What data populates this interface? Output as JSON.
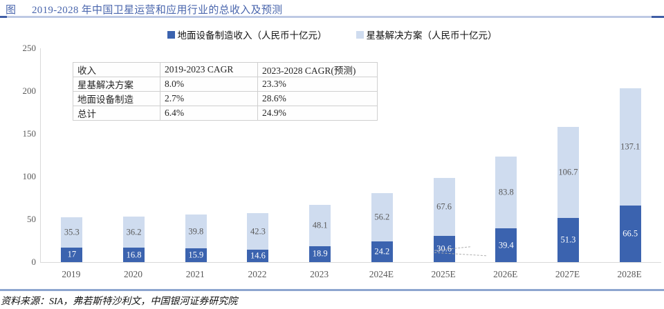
{
  "figure": {
    "tag": "图",
    "title": "2019-2028 年中国卫星运营和应用行业的总收入及预测",
    "source": "资料来源：SIA，弗若斯特沙利文，中国银河证券研究院"
  },
  "colors": {
    "accent_blue": "#4a66ad",
    "header_rule": "#bdc9e4",
    "header_rule_ends": "#3f5da5",
    "footer_rule": "#8da5cf",
    "ground_bar": "#3b63af",
    "satellite_bar": "#cfdcef",
    "axis_line": "#d9d9d9",
    "muted_text": "#595959"
  },
  "legend": {
    "items": [
      {
        "label": "地面设备制造收入（人民币十亿元）",
        "color": "#3b63af"
      },
      {
        "label": "星基解决方案（人民币十亿元）",
        "color": "#cfdcef"
      }
    ]
  },
  "cagr_table": {
    "headers": [
      "收入",
      "2019-2023 CAGR",
      "2023-2028 CAGR(预测)"
    ],
    "rows": [
      [
        "星基解决方案",
        "8.0%",
        "23.3%"
      ],
      [
        "地面设备制造",
        "2.7%",
        "28.6%"
      ],
      [
        "总计",
        "6.4%",
        "24.9%"
      ]
    ]
  },
  "chart_data": {
    "type": "bar",
    "stacked": true,
    "title": "2019-2028 年中国卫星运营和应用行业的总收入及预测",
    "categories": [
      "2019",
      "2020",
      "2021",
      "2022",
      "2023",
      "2024E",
      "2025E",
      "2026E",
      "2027E",
      "2028E"
    ],
    "series": [
      {
        "name": "地面设备制造收入（人民币十亿元）",
        "color": "#3b63af",
        "label_color": "#ffffff",
        "values": [
          17,
          16.8,
          15.9,
          14.6,
          18.9,
          24.2,
          30.6,
          39.4,
          51.3,
          66.5
        ]
      },
      {
        "name": "星基解决方案（人民币十亿元）",
        "color": "#cfdcef",
        "label_color": "#595959",
        "values": [
          35.3,
          36.2,
          39.8,
          42.3,
          48.1,
          56.2,
          67.6,
          83.8,
          106.7,
          137.1
        ]
      }
    ],
    "xlabel": "",
    "ylabel": "",
    "ylim": [
      0,
      250
    ],
    "yticks": [
      0,
      50,
      100,
      150,
      200,
      250
    ],
    "grid": false,
    "legend_position": "top"
  }
}
